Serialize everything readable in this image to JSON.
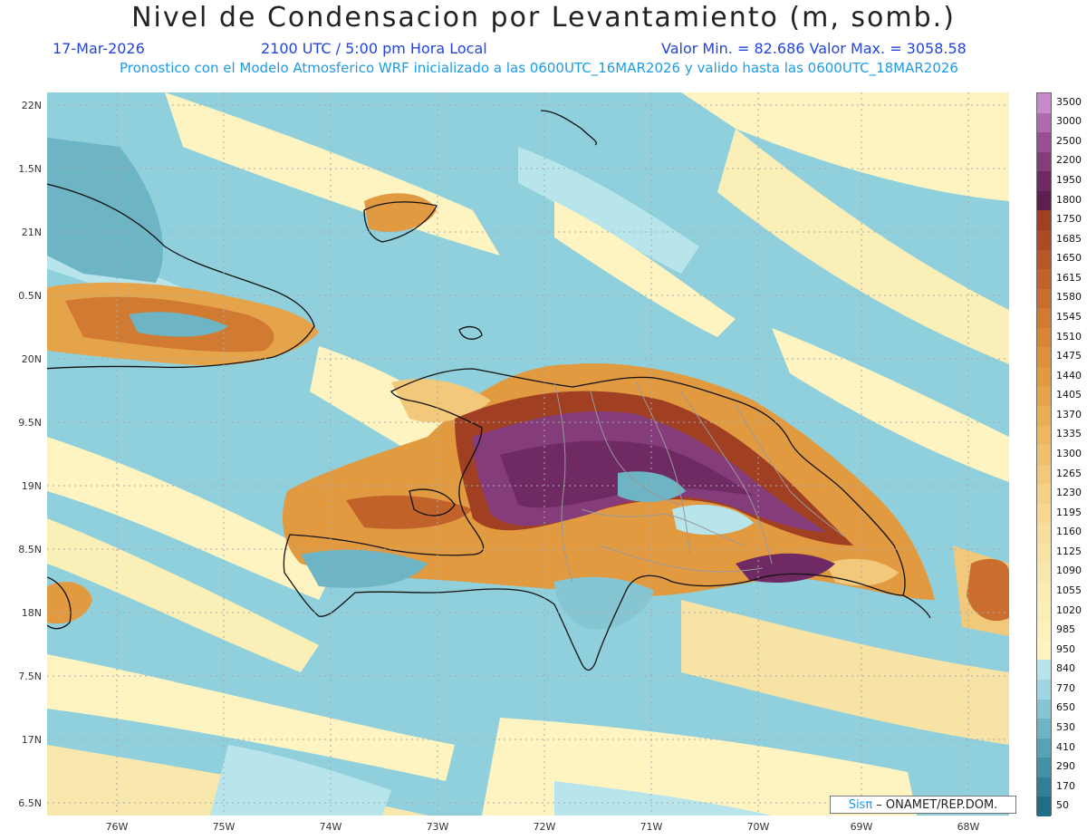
{
  "title": "Nivel de Condensacion por Levantamiento (m, somb.)",
  "date": "17-Mar-2026",
  "time": "2100 UTC / 5:00 pm Hora Local",
  "minmax": "Valor Min. = 82.686   Valor Max. = 3058.58",
  "subtitle": "Pronostico con el Modelo Atmosferico WRF inicializado a las 0600UTC_16MAR2026 y valido hasta las  0600UTC_18MAR2026",
  "credit_brand": "Sisπ",
  "credit_org": " – ONAMET/REP.DOM.",
  "y_labels": [
    "22N",
    "1.5N",
    "21N",
    "0.5N",
    "20N",
    "9.5N",
    "19N",
    "8.5N",
    "18N",
    "7.5N",
    "17N",
    "6.5N"
  ],
  "x_labels": [
    "76W",
    "75W",
    "74W",
    "73W",
    "72W",
    "71W",
    "70W",
    "69W",
    "68W"
  ],
  "legend_labels": [
    "3500",
    "3000",
    "2500",
    "2200",
    "1950",
    "1800",
    "1750",
    "1685",
    "1650",
    "1615",
    "1580",
    "1545",
    "1510",
    "1475",
    "1440",
    "1405",
    "1370",
    "1335",
    "1300",
    "1265",
    "1230",
    "1195",
    "1160",
    "1125",
    "1090",
    "1055",
    "1020",
    "985",
    "950",
    "840",
    "770",
    "650",
    "530",
    "410",
    "290",
    "170",
    "50"
  ],
  "legend_colors": [
    "#c78acb",
    "#b06aaf",
    "#9a4f92",
    "#843c7a",
    "#6f2a63",
    "#5c1f4f",
    "#a13f22",
    "#ad4a25",
    "#b85628",
    "#c1622a",
    "#c96e2d",
    "#d17a31",
    "#d88636",
    "#de903b",
    "#e29a41",
    "#e6a44a",
    "#eaae55",
    "#edb761",
    "#f0c06d",
    "#f2c97a",
    "#f4d186",
    "#f6d891",
    "#f7de9c",
    "#f8e3a6",
    "#f9e8ae",
    "#faecb4",
    "#fbefb8",
    "#fcf2bc",
    "#fdf4c1",
    "#b8e4ec",
    "#9fd6e1",
    "#86c6d3",
    "#6db4c4",
    "#57a2b5",
    "#4391a6",
    "#307f96",
    "#1f6e86"
  ]
}
